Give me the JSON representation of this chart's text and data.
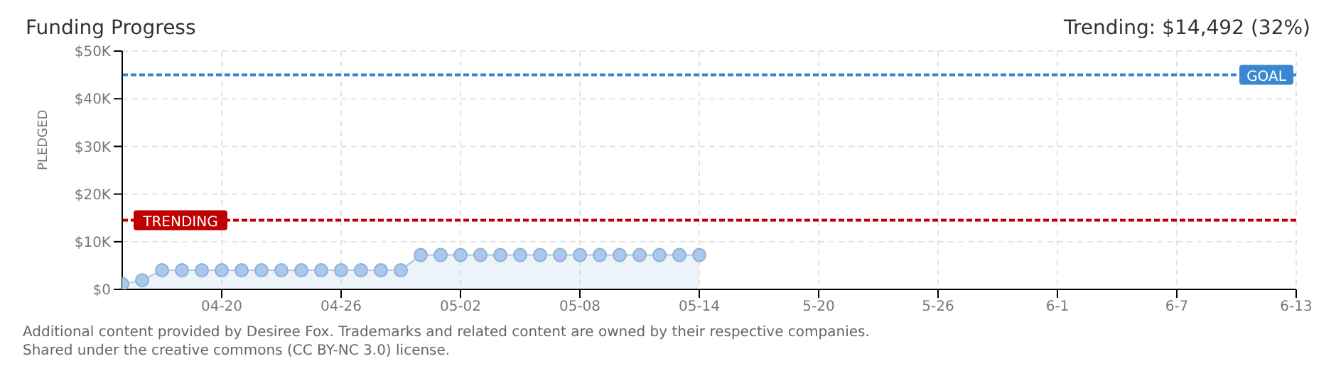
{
  "chart_data": {
    "type": "area",
    "title": "Funding Progress",
    "subtitle": "Trending: $14,492 (32%)",
    "ylabel": "PLEDGED",
    "x": [
      "--04-15",
      "--04-16",
      "--04-17",
      "--04-18",
      "--04-19",
      "--04-20",
      "--04-21",
      "--04-22",
      "--04-23",
      "--04-24",
      "--04-25",
      "--04-26",
      "--04-27",
      "--04-28",
      "--04-29",
      "--04-30",
      "--05-01",
      "--05-02",
      "--05-03",
      "--05-04",
      "--05-05",
      "--05-06",
      "--05-07",
      "--05-08",
      "--05-09",
      "--05-10",
      "--05-11",
      "--05-12",
      "--05-13",
      "--05-14"
    ],
    "series": [
      {
        "color": "#a9c8ea",
        "values": [
          1100,
          1900,
          4000,
          4000,
          4000,
          4000,
          4000,
          4000,
          4000,
          4000,
          4000,
          4000,
          4000,
          4000,
          4000,
          7200,
          7200,
          7200,
          7200,
          7200,
          7200,
          7200,
          7200,
          7200,
          7200,
          7200,
          7200,
          7200,
          7200,
          7200
        ]
      }
    ],
    "xlim": [
      "--04-15",
      "--06-13"
    ],
    "xticks": [
      {
        "value": "--04-20",
        "label": "04-20"
      },
      {
        "value": "--04-26",
        "label": "04-26"
      },
      {
        "value": "--05-02",
        "label": "05-02"
      },
      {
        "value": "--05-08",
        "label": "05-08"
      },
      {
        "value": "--05-14",
        "label": "05-14"
      },
      {
        "value": "--05-20",
        "label": "5-20"
      },
      {
        "value": "--05-26",
        "label": "5-26"
      },
      {
        "value": "--06-01",
        "label": "6-1"
      },
      {
        "value": "--06-07",
        "label": "6-7"
      },
      {
        "value": "--06-13",
        "label": "6-13"
      }
    ],
    "ylim": [
      0,
      50000
    ],
    "yticks": [
      {
        "value": 0,
        "label": "$0"
      },
      {
        "value": 10000,
        "label": "$10K"
      },
      {
        "value": 20000,
        "label": "$20K"
      },
      {
        "value": 30000,
        "label": "$30K"
      },
      {
        "value": 40000,
        "label": "$40K"
      },
      {
        "value": 50000,
        "label": "$50K"
      }
    ],
    "ref_lines": [
      {
        "axis": "y",
        "value": 45000,
        "label": "GOAL",
        "color": "#3a86d0",
        "line_style": "dashed"
      },
      {
        "axis": "y",
        "value": 14492,
        "label": "TRENDING",
        "color": "#c00000",
        "line_style": "dashed"
      }
    ],
    "grid": true,
    "marker": "circle",
    "annotations": [
      "Additional content provided by Desiree Fox. Trademarks and related content are owned by their respective companies.",
      "Shared under the creative commons (CC BY-NC 3.0) license."
    ]
  }
}
